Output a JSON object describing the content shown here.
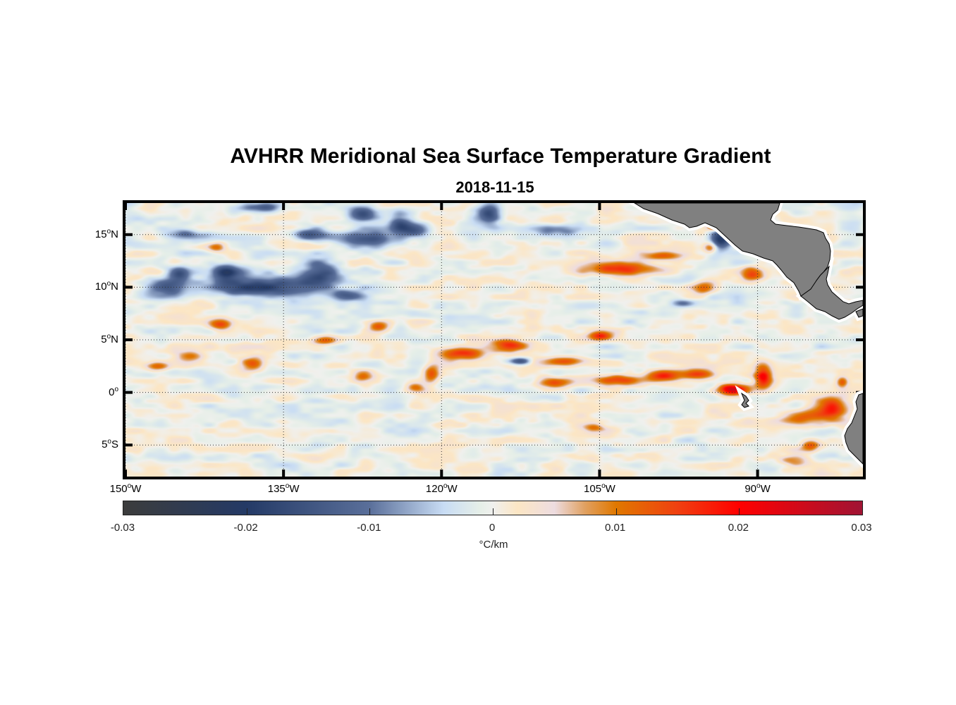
{
  "title": "AVHRR Meridional Sea Surface Temperature Gradient",
  "subtitle": "2018-11-15",
  "chart_data": {
    "type": "heatmap",
    "title": "AVHRR Meridional Sea Surface Temperature Gradient",
    "subtitle": "2018-11-15",
    "xlabel": "",
    "ylabel": "",
    "xlim": [
      -150,
      -80
    ],
    "ylim": [
      -8,
      18
    ],
    "grid": true,
    "x_ticks": [
      {
        "value": -150,
        "num": "150",
        "deg": "o",
        "hemi": "W"
      },
      {
        "value": -135,
        "num": "135",
        "deg": "o",
        "hemi": "W"
      },
      {
        "value": -120,
        "num": "120",
        "deg": "o",
        "hemi": "W"
      },
      {
        "value": -105,
        "num": "105",
        "deg": "o",
        "hemi": "W"
      },
      {
        "value": -90,
        "num": "90",
        "deg": "o",
        "hemi": "W"
      }
    ],
    "y_ticks": [
      {
        "value": 15,
        "num": "15",
        "deg": "o",
        "hemi": "N"
      },
      {
        "value": 10,
        "num": "10",
        "deg": "o",
        "hemi": "N"
      },
      {
        "value": 5,
        "num": "5",
        "deg": "o",
        "hemi": "N"
      },
      {
        "value": 0,
        "num": "0",
        "deg": "o",
        "hemi": ""
      },
      {
        "value": -5,
        "num": "5",
        "deg": "o",
        "hemi": "S"
      }
    ],
    "colorbar": {
      "label": "°C/km",
      "range": [
        -0.03,
        0.03
      ],
      "ticks": [
        {
          "value": -0.03,
          "label": "-0.03"
        },
        {
          "value": -0.02,
          "label": "-0.02"
        },
        {
          "value": -0.01,
          "label": "-0.01"
        },
        {
          "value": 0,
          "label": "0"
        },
        {
          "value": 0.01,
          "label": "0.01"
        },
        {
          "value": 0.02,
          "label": "0.02"
        },
        {
          "value": 0.03,
          "label": "0.03"
        }
      ],
      "colormap": [
        {
          "value": -0.03,
          "color": "#3c3c3c"
        },
        {
          "value": -0.02,
          "color": "#243a66"
        },
        {
          "value": -0.01,
          "color": "#5a6f9a"
        },
        {
          "value": -0.004,
          "color": "#c8dcf4"
        },
        {
          "value": -0.001,
          "color": "#e6efe8"
        },
        {
          "value": 0.0,
          "color": "#f0f0ee"
        },
        {
          "value": 0.002,
          "color": "#fce6c4"
        },
        {
          "value": 0.005,
          "color": "#eddce0"
        },
        {
          "value": 0.0075,
          "color": "#e0a060"
        },
        {
          "value": 0.01,
          "color": "#e07800"
        },
        {
          "value": 0.015,
          "color": "#f04010"
        },
        {
          "value": 0.02,
          "color": "#ff0000"
        },
        {
          "value": 0.03,
          "color": "#a01434"
        }
      ]
    },
    "features": [
      {
        "lon": -137.0,
        "lat": 10.0,
        "value": -0.019,
        "rlon": 6.0,
        "rlat": 1.1
      },
      {
        "lon": -146.0,
        "lat": 10.0,
        "value": -0.016,
        "rlon": 2.2,
        "rlat": 0.8
      },
      {
        "lon": -131.5,
        "lat": 11.3,
        "value": -0.016,
        "rlon": 2.2,
        "rlat": 1.4
      },
      {
        "lon": -145.0,
        "lat": 11.3,
        "value": -0.015,
        "rlon": 1.2,
        "rlat": 0.8
      },
      {
        "lon": -140.5,
        "lat": 11.5,
        "value": -0.017,
        "rlon": 1.5,
        "rlat": 0.9
      },
      {
        "lon": -129.0,
        "lat": 9.2,
        "value": -0.015,
        "rlon": 2.0,
        "rlat": 0.6
      },
      {
        "lon": -127.0,
        "lat": 14.5,
        "value": -0.016,
        "rlon": 3.0,
        "rlat": 1.0
      },
      {
        "lon": -122.5,
        "lat": 15.5,
        "value": -0.015,
        "rlon": 1.5,
        "rlat": 0.8
      },
      {
        "lon": -127.5,
        "lat": 17.0,
        "value": -0.016,
        "rlon": 1.5,
        "rlat": 0.8
      },
      {
        "lon": -124.0,
        "lat": 16.0,
        "value": -0.014,
        "rlon": 1.2,
        "rlat": 1.0
      },
      {
        "lon": -132.5,
        "lat": 15.0,
        "value": -0.014,
        "rlon": 2.0,
        "rlat": 0.6
      },
      {
        "lon": -144.5,
        "lat": 15.0,
        "value": -0.01,
        "rlon": 2.5,
        "rlat": 0.6
      },
      {
        "lon": -137.0,
        "lat": 17.6,
        "value": -0.015,
        "rlon": 2.0,
        "rlat": 0.5
      },
      {
        "lon": -115.5,
        "lat": 17.0,
        "value": -0.017,
        "rlon": 1.2,
        "rlat": 1.2
      },
      {
        "lon": -109.0,
        "lat": 15.5,
        "value": -0.01,
        "rlon": 2.5,
        "rlat": 0.6
      },
      {
        "lon": -93.5,
        "lat": 14.6,
        "value": -0.024,
        "rlon": 1.2,
        "rlat": 1.1
      },
      {
        "lon": -112.5,
        "lat": 3.0,
        "value": -0.016,
        "rlon": 1.2,
        "rlat": 0.4
      },
      {
        "lon": -97.0,
        "lat": 8.5,
        "value": -0.012,
        "rlon": 1.3,
        "rlat": 0.4
      },
      {
        "lon": -141.5,
        "lat": 13.8,
        "value": 0.011,
        "rlon": 1.0,
        "rlat": 0.5
      },
      {
        "lon": -141.0,
        "lat": 6.5,
        "value": 0.014,
        "rlon": 1.2,
        "rlat": 0.6
      },
      {
        "lon": -138.0,
        "lat": 2.7,
        "value": 0.015,
        "rlon": 1.3,
        "rlat": 0.7
      },
      {
        "lon": -144.0,
        "lat": 3.5,
        "value": 0.012,
        "rlon": 1.5,
        "rlat": 0.6
      },
      {
        "lon": -147.0,
        "lat": 2.5,
        "value": 0.011,
        "rlon": 1.2,
        "rlat": 0.6
      },
      {
        "lon": -131.0,
        "lat": 5.0,
        "value": 0.012,
        "rlon": 1.3,
        "rlat": 0.5
      },
      {
        "lon": -126.0,
        "lat": 6.3,
        "value": 0.013,
        "rlon": 1.2,
        "rlat": 0.6
      },
      {
        "lon": -121.0,
        "lat": 1.8,
        "value": 0.013,
        "rlon": 0.8,
        "rlat": 1.0
      },
      {
        "lon": -118.0,
        "lat": 3.7,
        "value": 0.016,
        "rlon": 2.5,
        "rlat": 0.7
      },
      {
        "lon": -113.5,
        "lat": 4.5,
        "value": 0.015,
        "rlon": 1.8,
        "rlat": 0.6
      },
      {
        "lon": -108.5,
        "lat": 3.0,
        "value": 0.014,
        "rlon": 2.5,
        "rlat": 0.5
      },
      {
        "lon": -109.5,
        "lat": 1.0,
        "value": 0.012,
        "rlon": 2.0,
        "rlat": 0.5
      },
      {
        "lon": -105.0,
        "lat": 5.4,
        "value": 0.015,
        "rlon": 1.2,
        "rlat": 0.5
      },
      {
        "lon": -103.5,
        "lat": 1.2,
        "value": 0.016,
        "rlon": 2.5,
        "rlat": 0.6
      },
      {
        "lon": -99.0,
        "lat": 1.6,
        "value": 0.017,
        "rlon": 2.0,
        "rlat": 0.6
      },
      {
        "lon": -95.5,
        "lat": 1.8,
        "value": 0.016,
        "rlon": 1.8,
        "rlat": 0.6
      },
      {
        "lon": -92.5,
        "lat": 0.3,
        "value": 0.026,
        "rlon": 1.6,
        "rlat": 0.6
      },
      {
        "lon": -89.5,
        "lat": 1.5,
        "value": 0.019,
        "rlon": 0.9,
        "rlat": 1.3
      },
      {
        "lon": -103.0,
        "lat": 11.8,
        "value": 0.016,
        "rlon": 3.5,
        "rlat": 0.7
      },
      {
        "lon": -99.0,
        "lat": 13.0,
        "value": 0.013,
        "rlon": 2.0,
        "rlat": 0.5
      },
      {
        "lon": -94.5,
        "lat": 13.8,
        "value": 0.013,
        "rlon": 0.7,
        "rlat": 0.6
      },
      {
        "lon": -94.0,
        "lat": 15.8,
        "value": 0.024,
        "rlon": 0.8,
        "rlat": 0.4
      },
      {
        "lon": -95.0,
        "lat": 10.0,
        "value": 0.013,
        "rlon": 1.4,
        "rlat": 0.7
      },
      {
        "lon": -90.5,
        "lat": 11.3,
        "value": 0.013,
        "rlon": 1.2,
        "rlat": 0.7
      },
      {
        "lon": -83.0,
        "lat": -1.5,
        "value": 0.018,
        "rlon": 2.0,
        "rlat": 1.2
      },
      {
        "lon": -86.0,
        "lat": -2.3,
        "value": 0.013,
        "rlon": 2.0,
        "rlat": 0.8
      },
      {
        "lon": -85.0,
        "lat": -5.0,
        "value": 0.012,
        "rlon": 1.0,
        "rlat": 0.6
      },
      {
        "lon": -86.5,
        "lat": -6.5,
        "value": 0.009,
        "rlon": 1.5,
        "rlat": 0.6
      },
      {
        "lon": -82.0,
        "lat": 1.0,
        "value": 0.012,
        "rlon": 0.6,
        "rlat": 0.6
      },
      {
        "lon": -127.5,
        "lat": 1.5,
        "value": 0.01,
        "rlon": 1.0,
        "rlat": 0.6
      },
      {
        "lon": -122.5,
        "lat": 0.5,
        "value": 0.009,
        "rlon": 1.0,
        "rlat": 0.5
      },
      {
        "lon": -105.5,
        "lat": -3.3,
        "value": 0.008,
        "rlon": 1.2,
        "rlat": 0.4
      }
    ],
    "land": [
      {
        "name": "Mexico / Central America"
      },
      {
        "name": "South America coast"
      },
      {
        "name": "Galapagos"
      }
    ]
  }
}
